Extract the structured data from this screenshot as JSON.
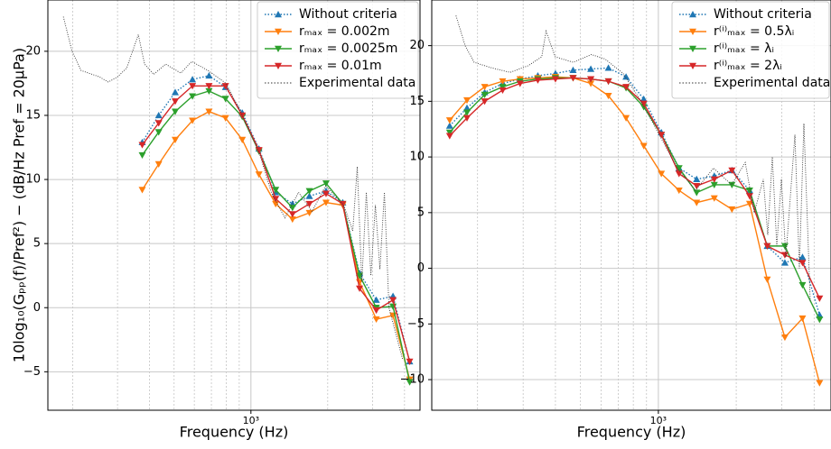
{
  "chart_data": [
    {
      "type": "line",
      "xscale": "log",
      "grid": true,
      "legend": "upper right",
      "ylabel": "10log₁₀(Gₚₚ(f)/Pref²) − (dB/Hz    Pref = 20μPa)",
      "xlabel": "Frequency (Hz)",
      "xlim": [
        160,
        4600
      ],
      "ylim": [
        -8,
        24
      ],
      "xticks": [
        {
          "value": 1000,
          "label": "10³"
        }
      ],
      "xminorticks": [
        200,
        300,
        400,
        500,
        600,
        700,
        800,
        900,
        2000,
        3000,
        4000
      ],
      "yticks": [
        {
          "value": -5,
          "label": "−5"
        },
        0,
        5,
        10,
        15,
        20
      ],
      "x": [
        375,
        435,
        505,
        590,
        685,
        795,
        925,
        1075,
        1250,
        1455,
        1695,
        1970,
        2290,
        2665,
        3100,
        3605,
        4190
      ],
      "series": [
        {
          "name": "Without criteria",
          "color": "#1f77b4",
          "linestyle": "dotted",
          "marker": "^",
          "values": [
            12.9,
            15.0,
            16.8,
            17.8,
            18.1,
            17.2,
            15.2,
            12.4,
            9.0,
            8.1,
            8.7,
            9.1,
            8.2,
            2.7,
            0.6,
            0.9,
            -4.2
          ]
        },
        {
          "name": "rₘₐₓ = 0.002m",
          "color": "#ff7f0e",
          "linestyle": "solid",
          "marker": "v",
          "values": [
            9.2,
            11.2,
            13.1,
            14.6,
            15.3,
            14.8,
            13.1,
            10.4,
            8.1,
            6.9,
            7.4,
            8.2,
            8.0,
            2.0,
            -0.9,
            -0.6,
            -5.6
          ]
        },
        {
          "name": "rₘₐₓ = 0.0025m",
          "color": "#2ca02c",
          "linestyle": "solid",
          "marker": "v",
          "values": [
            11.9,
            13.7,
            15.3,
            16.5,
            16.9,
            16.3,
            14.9,
            12.2,
            9.2,
            7.8,
            9.1,
            9.7,
            8.1,
            2.5,
            0.0,
            0.1,
            -5.8
          ]
        },
        {
          "name": "rₘₐₓ = 0.01m",
          "color": "#d62728",
          "linestyle": "solid",
          "marker": "v",
          "values": [
            12.7,
            14.4,
            16.1,
            17.3,
            17.3,
            17.3,
            15.0,
            12.3,
            8.5,
            7.3,
            8.1,
            8.9,
            8.1,
            1.5,
            -0.2,
            0.6,
            -4.2
          ]
        },
        {
          "name": "Experimental data",
          "color": "#333333",
          "linestyle": "dotted",
          "x": [
            184,
            199,
            216,
            255,
            276,
            300,
            326,
            362,
            383,
            416,
            463,
            531,
            586,
            679,
            799,
            926,
            1081,
            1202,
            1359,
            1536,
            1736,
            1963,
            2310,
            2507,
            2611,
            2720,
            2834,
            2952,
            3075,
            3203,
            3336,
            3476,
            3928
          ],
          "values": [
            22.7,
            20,
            18.5,
            18,
            17.6,
            18,
            18.7,
            21.3,
            19,
            18.2,
            19,
            18.3,
            19.2,
            18.5,
            17.5,
            15,
            12,
            9,
            7,
            9,
            7.5,
            9.5,
            8,
            6,
            11,
            2,
            9,
            2.5,
            8,
            3,
            9,
            0,
            -4
          ]
        }
      ]
    },
    {
      "type": "line",
      "xscale": "log",
      "grid": true,
      "legend": "upper right",
      "xlabel": "Frequency (Hz)",
      "xlim": [
        133,
        4650
      ],
      "ylim": [
        -12.75,
        24.1
      ],
      "xticks": [
        {
          "value": 1000,
          "label": "10³"
        }
      ],
      "xminorticks": [
        200,
        300,
        400,
        500,
        600,
        700,
        800,
        900,
        2000,
        3000,
        4000
      ],
      "yticks": [
        {
          "value": -10,
          "label": "−10"
        },
        {
          "value": -5,
          "label": "−5"
        },
        0,
        5,
        10,
        15,
        20
      ],
      "x": [
        156,
        182,
        213,
        250,
        292,
        342,
        400,
        468,
        548,
        641,
        750,
        878,
        1027,
        1202,
        1406,
        1645,
        1925,
        2253,
        2636,
        3084,
        3608,
        4200
      ],
      "series": [
        {
          "name": "Without criteria",
          "color": "#1f77b4",
          "linestyle": "dotted",
          "marker": "^",
          "values": [
            12.8,
            14.4,
            15.8,
            16.6,
            17.0,
            17.3,
            17.5,
            17.8,
            17.9,
            18.0,
            17.2,
            15.2,
            12.2,
            9.0,
            8.0,
            8.3,
            8.8,
            7.0,
            2.0,
            0.5,
            1.0,
            -4.2
          ]
        },
        {
          "name": "r⁽ⁱ⁾ₘₐₓ = 0.5λᵢ",
          "color": "#ff7f0e",
          "linestyle": "solid",
          "marker": "v",
          "values": [
            13.3,
            15.1,
            16.3,
            16.8,
            17.0,
            17.1,
            17.2,
            17.1,
            16.6,
            15.5,
            13.5,
            11.0,
            8.5,
            7.0,
            5.9,
            6.3,
            5.3,
            5.8,
            -1.0,
            -6.2,
            -4.5,
            -10.3
          ]
        },
        {
          "name": "r⁽ⁱ⁾ₘₐₓ = λᵢ",
          "color": "#2ca02c",
          "linestyle": "solid",
          "marker": "v",
          "values": [
            12.2,
            14.0,
            15.6,
            16.3,
            16.8,
            17.0,
            17.1,
            17.1,
            17.0,
            16.8,
            16.2,
            14.5,
            12.0,
            9.0,
            6.8,
            7.5,
            7.5,
            7.0,
            2.0,
            2.0,
            -1.5,
            -4.6
          ]
        },
        {
          "name": "r⁽ⁱ⁾ₘₐₓ = 2λᵢ",
          "color": "#d62728",
          "linestyle": "solid",
          "marker": "v",
          "values": [
            11.9,
            13.5,
            15.0,
            16.0,
            16.6,
            16.9,
            17.0,
            17.1,
            17.0,
            16.8,
            16.3,
            14.8,
            12.0,
            8.5,
            7.4,
            8.0,
            8.8,
            6.5,
            2.0,
            1.2,
            0.5,
            -2.7
          ]
        },
        {
          "name": "Experimental data",
          "color": "#333333",
          "linestyle": "dotted",
          "x": [
            165,
            179,
            194,
            227,
            267,
            314,
            354,
            368,
            399,
            469,
            551,
            622,
            731,
            858,
            1008,
            1184,
            1391,
            1634,
            1919,
            2167,
            2348,
            2545,
            2648,
            2758,
            2870,
            2990,
            3111,
            3373,
            3509,
            3653,
            3866
          ],
          "values": [
            22.7,
            20,
            18.5,
            18,
            17.6,
            18.2,
            19,
            21.3,
            19,
            18.5,
            19.2,
            18.8,
            17.5,
            15,
            12,
            9,
            7,
            9,
            7.5,
            9.5,
            5,
            8,
            3,
            10,
            2,
            8,
            1,
            12,
            0,
            13,
            -3
          ]
        }
      ]
    }
  ]
}
